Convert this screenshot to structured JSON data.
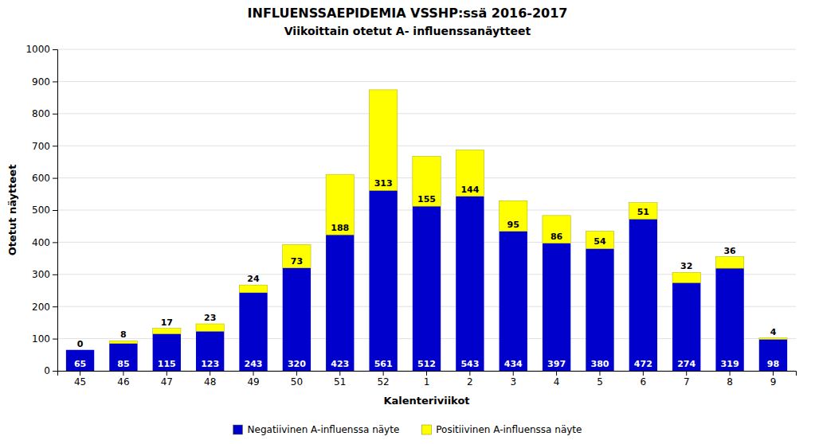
{
  "chart_data": {
    "type": "bar",
    "title": "INFLUENSSAEPIDEMIA VSSHP:ssä 2016-2017",
    "subtitle": "Viikoittain otetut A- influenssanäytteet",
    "xlabel": "Kalenteriviikot",
    "ylabel": "Otetut näytteet",
    "categories": [
      "45",
      "46",
      "47",
      "48",
      "49",
      "50",
      "51",
      "52",
      "1",
      "2",
      "3",
      "4",
      "5",
      "6",
      "7",
      "8",
      "9"
    ],
    "series": [
      {
        "name": "Negatiivinen A-influenssa näyte",
        "color": "#0000CC",
        "values": [
          65,
          85,
          115,
          123,
          243,
          320,
          423,
          561,
          512,
          543,
          434,
          397,
          380,
          472,
          274,
          319,
          98
        ]
      },
      {
        "name": "Positiivinen A-influenssa näyte",
        "color": "#FFFF00",
        "values": [
          0,
          8,
          17,
          23,
          24,
          73,
          188,
          313,
          155,
          144,
          95,
          86,
          54,
          51,
          32,
          36,
          4
        ]
      }
    ],
    "stacked": true,
    "data_labels": true,
    "ylim": [
      0,
      1000
    ],
    "yticks": [
      0,
      100,
      200,
      300,
      400,
      500,
      600,
      700,
      800,
      900,
      1000
    ],
    "grid": true,
    "legend": "bottom"
  }
}
